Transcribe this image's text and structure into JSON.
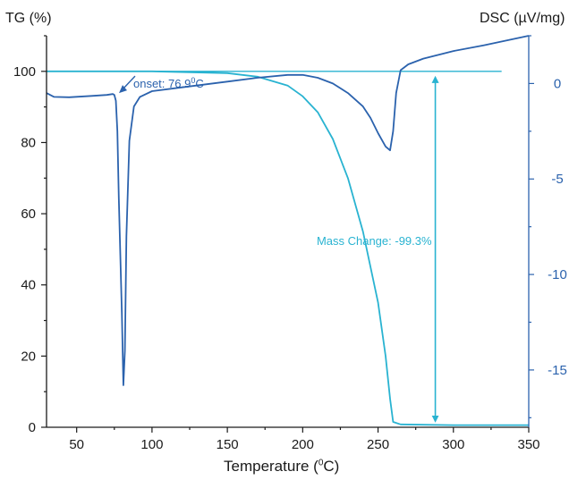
{
  "chart_data": {
    "type": "line",
    "xlabel_prefix": "Temperature (",
    "xlabel_sup": "0",
    "xlabel_suffix": "C)",
    "ylabel_left": "TG (%)",
    "ylabel_right": "DSC (µV/mg)",
    "xlim": [
      30,
      350
    ],
    "ylim_left": [
      0,
      110
    ],
    "ylim_right": [
      -18,
      2.5
    ],
    "xticks": [
      50,
      100,
      150,
      200,
      250,
      300,
      350
    ],
    "yticks_left": [
      0,
      20,
      40,
      60,
      80,
      100
    ],
    "yticks_right": [
      0,
      -5,
      -10,
      -15
    ],
    "grid": false,
    "colors": {
      "tg": "#29b3d1",
      "dsc": "#2b62ad",
      "axis_left": "#1a1a1a",
      "axis_right": "#2b62ad",
      "annotation": "#29b3d1",
      "onset": "#2b62ad"
    },
    "series": [
      {
        "axis": "left",
        "x": [
          30,
          50,
          100,
          150,
          170,
          190,
          200,
          210,
          220,
          230,
          240,
          250,
          255,
          258,
          260,
          265,
          300,
          350
        ],
        "y": [
          100,
          100,
          100,
          99.5,
          98.5,
          96,
          93,
          88.5,
          81,
          70,
          55,
          35,
          20,
          8,
          1.5,
          0.8,
          0.6,
          0.6
        ]
      },
      {
        "axis": "right",
        "x": [
          30,
          35,
          45,
          60,
          70,
          74,
          75,
          76,
          77,
          78,
          80,
          81,
          82,
          83,
          85,
          88,
          92,
          100,
          120,
          150,
          170,
          190,
          200,
          210,
          220,
          230,
          240,
          245,
          250,
          255,
          258,
          260,
          262,
          265,
          270,
          280,
          300,
          320,
          350
        ],
        "y": [
          -0.5,
          -0.7,
          -0.72,
          -0.65,
          -0.6,
          -0.55,
          -0.6,
          -0.9,
          -2.5,
          -6,
          -12,
          -15.8,
          -14,
          -8,
          -3,
          -1.2,
          -0.7,
          -0.4,
          -0.2,
          0.1,
          0.3,
          0.45,
          0.45,
          0.3,
          0,
          -0.5,
          -1.2,
          -1.8,
          -2.6,
          -3.3,
          -3.5,
          -2.5,
          -0.5,
          0.7,
          1.0,
          1.3,
          1.7,
          2.0,
          2.5
        ]
      }
    ],
    "reference_line": {
      "axis": "left",
      "y": 100,
      "x": [
        30,
        332
      ]
    },
    "annotations": {
      "onset_prefix": "onset: 76.9",
      "onset_sup": "0",
      "onset_suffix": "C",
      "onset_x": 76.9,
      "onset_dsc": -0.55,
      "mass_change": "Mass Change: -99.3%",
      "mass_change_arrow_x": 288,
      "mass_change_range": [
        100,
        0.8
      ]
    }
  }
}
